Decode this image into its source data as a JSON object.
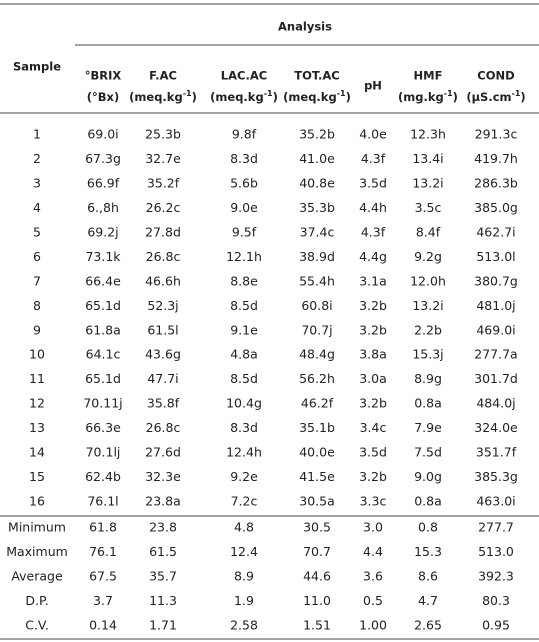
{
  "header": {
    "group_title": "Analysis",
    "sample": "Sample",
    "columns": [
      {
        "name": "°BRIX",
        "unit": [
          "(°Bx)"
        ]
      },
      {
        "name": "F.AC",
        "unit": [
          "(meq.kg",
          "-1",
          ")"
        ]
      },
      {
        "name": "LAC.AC",
        "unit": [
          "(meq.kg",
          "-1",
          ")"
        ]
      },
      {
        "name": "TOT.AC",
        "unit": [
          "(meq.kg",
          "-1",
          ")"
        ]
      },
      {
        "name": "pH"
      },
      {
        "name": "HMF",
        "unit": [
          "(mg.kg",
          "-1",
          ")"
        ]
      },
      {
        "name": "COND",
        "unit": [
          "(μS.cm",
          "-1",
          ")"
        ]
      }
    ]
  },
  "rows": [
    [
      "1",
      "69.0i",
      "25.3b",
      "9.8f",
      "35.2b",
      "4.0e",
      "12.3h",
      "291.3c"
    ],
    [
      "2",
      "67.3g",
      "32.7e",
      "8.3d",
      "41.0e",
      "4.3f",
      "13.4i",
      "419.7h"
    ],
    [
      "3",
      "66.9f",
      "35.2f",
      "5.6b",
      "40.8e",
      "3.5d",
      "13.2i",
      "286.3b"
    ],
    [
      "4",
      "6.,8h",
      "26.2c",
      "9.0e",
      "35.3b",
      "4.4h",
      "3.5c",
      "385.0g"
    ],
    [
      "5",
      "69.2j",
      "27.8d",
      "9.5f",
      "37.4c",
      "4.3f",
      "8.4f",
      "462.7i"
    ],
    [
      "6",
      "73.1k",
      "26.8c",
      "12.1h",
      "38.9d",
      "4.4g",
      "9.2g",
      "513.0l"
    ],
    [
      "7",
      "66.4e",
      "46.6h",
      "8.8e",
      "55.4h",
      "3.1a",
      "12.0h",
      "380.7g"
    ],
    [
      "8",
      "65.1d",
      "52.3j",
      "8.5d",
      "60.8i",
      "3.2b",
      "13.2i",
      "481.0j"
    ],
    [
      "9",
      "61.8a",
      "61.5l",
      "9.1e",
      "70.7j",
      "3.2b",
      "2.2b",
      "469.0i"
    ],
    [
      "10",
      "64.1c",
      "43.6g",
      "4.8a",
      "48.4g",
      "3.8a",
      "15.3j",
      "277.7a"
    ],
    [
      "11",
      "65.1d",
      "47.7i",
      "8.5d",
      "56.2h",
      "3.0a",
      "8.9g",
      "301.7d"
    ],
    [
      "12",
      "70.11j",
      "35.8f",
      "10.4g",
      "46.2f",
      "3.2b",
      "0.8a",
      "484.0j"
    ],
    [
      "13",
      "66.3e",
      "26.8c",
      "8.3d",
      "35.1b",
      "3.4c",
      "7.9e",
      "324.0e"
    ],
    [
      "14",
      "70.1lj",
      "27.6d",
      "12.4h",
      "40.0e",
      "3.5d",
      "7.5d",
      "351.7f"
    ],
    [
      "15",
      "62.4b",
      "32.3e",
      "9.2e",
      "41.5e",
      "3.2b",
      "9.0g",
      "385.3g"
    ],
    [
      "16",
      "76.1l",
      "23.8a",
      "7.2c",
      "30.5a",
      "3.3c",
      "0.8a",
      "463.0i"
    ]
  ],
  "summary": [
    [
      "Minimum",
      "61.8",
      "23.8",
      "4.8",
      "30.5",
      "3.0",
      "0.8",
      "277.7"
    ],
    [
      "Maximum",
      "76.1",
      "61.5",
      "12.4",
      "70.7",
      "4.4",
      "15.3",
      "513.0"
    ],
    [
      "Average",
      "67.5",
      "35.7",
      "8.9",
      "44.6",
      "3.6",
      "8.6",
      "392.3"
    ],
    [
      "D.P.",
      "3.7",
      "11.3",
      "1.9",
      "11.0",
      "0.5",
      "4.7",
      "80.3"
    ],
    [
      "C.V.",
      "0.14",
      "1.71",
      "2.58",
      "1.51",
      "1.00",
      "2.65",
      "0.95"
    ]
  ]
}
